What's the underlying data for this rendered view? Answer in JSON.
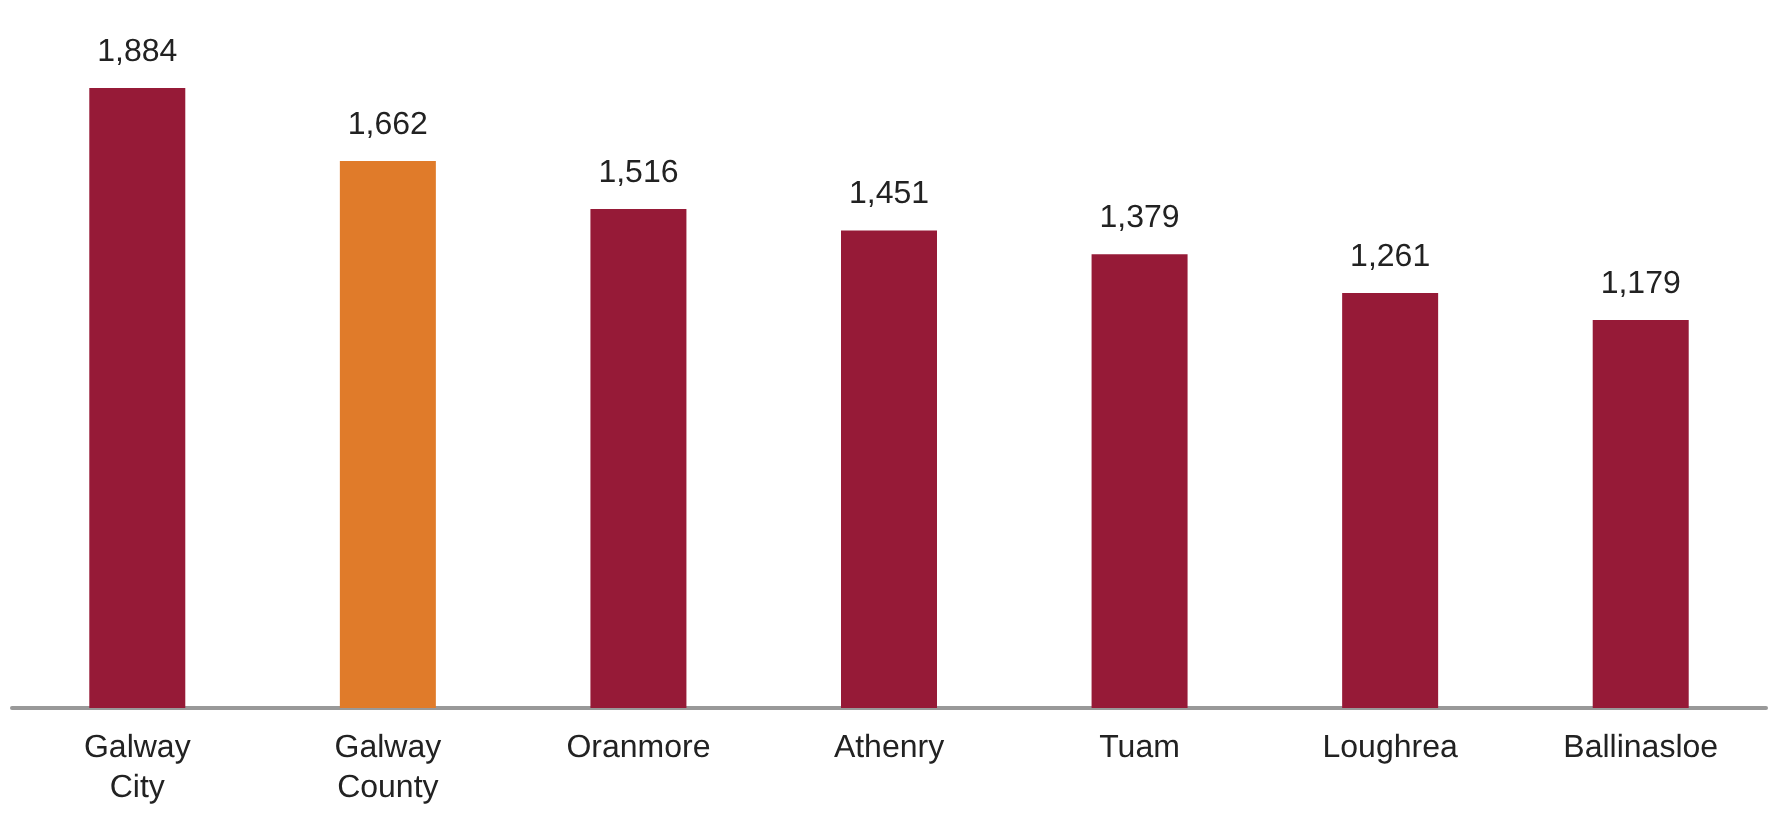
{
  "chart_data": {
    "type": "bar",
    "categories": [
      "Galway City",
      "Galway County",
      "Oranmore",
      "Athenry",
      "Tuam",
      "Loughrea",
      "Ballinasloe"
    ],
    "values": [
      1884,
      1662,
      1516,
      1451,
      1379,
      1261,
      1179
    ],
    "colors": [
      "#961a37",
      "#e07b2a",
      "#961a37",
      "#961a37",
      "#961a37",
      "#961a37",
      "#961a37"
    ],
    "value_labels": [
      "1,884",
      "1,662",
      "1,516",
      "1,451",
      "1,379",
      "1,261",
      "1,179"
    ]
  }
}
